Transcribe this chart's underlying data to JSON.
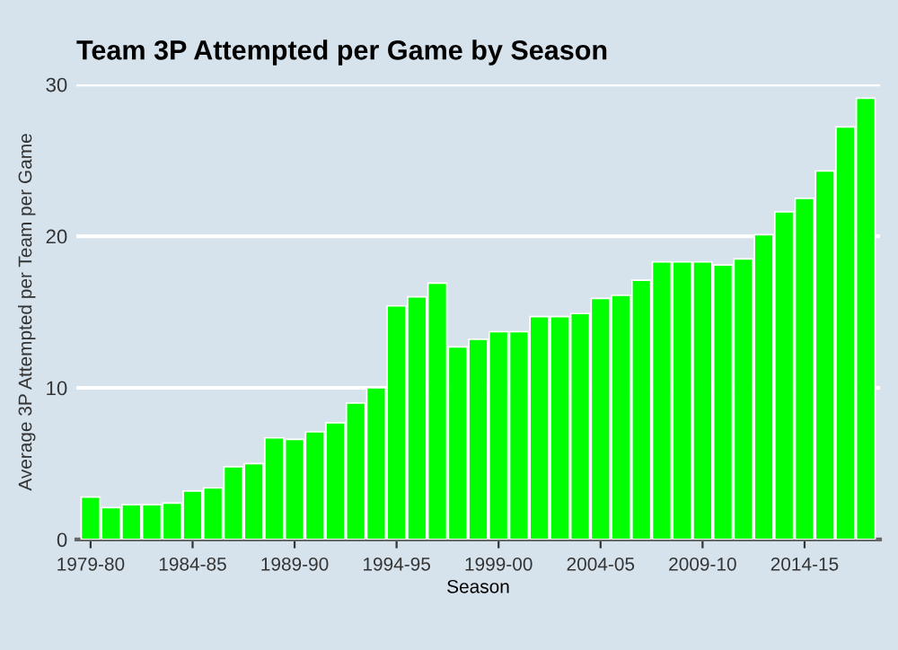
{
  "chart_data": {
    "type": "bar",
    "title": "Team 3P Attempted per Game by Season",
    "xlabel": "Season",
    "ylabel": "Average 3P Attempted per Team per Game",
    "categories": [
      "1979-80",
      null,
      null,
      null,
      null,
      "1984-85",
      null,
      null,
      null,
      null,
      "1989-90",
      null,
      null,
      null,
      null,
      "1994-95",
      null,
      null,
      null,
      null,
      "1999-00",
      null,
      null,
      null,
      null,
      "2004-05",
      null,
      null,
      null,
      null,
      "2009-10",
      null,
      null,
      null,
      null,
      "2014-15",
      null,
      null,
      null
    ],
    "values": [
      2.8,
      2.1,
      2.3,
      2.3,
      2.4,
      3.2,
      3.4,
      4.8,
      5.0,
      6.7,
      6.6,
      7.1,
      7.7,
      9.0,
      10.0,
      15.4,
      16.0,
      16.9,
      12.7,
      13.2,
      13.7,
      13.7,
      14.7,
      14.7,
      14.9,
      15.9,
      16.1,
      17.1,
      18.3,
      18.3,
      18.3,
      18.1,
      18.5,
      20.1,
      21.6,
      22.5,
      24.3,
      27.2,
      29.1
    ],
    "color": "#00ff00",
    "ylim": [
      0,
      30
    ],
    "yticks": [
      0,
      10,
      20,
      30
    ],
    "grid": "y"
  }
}
